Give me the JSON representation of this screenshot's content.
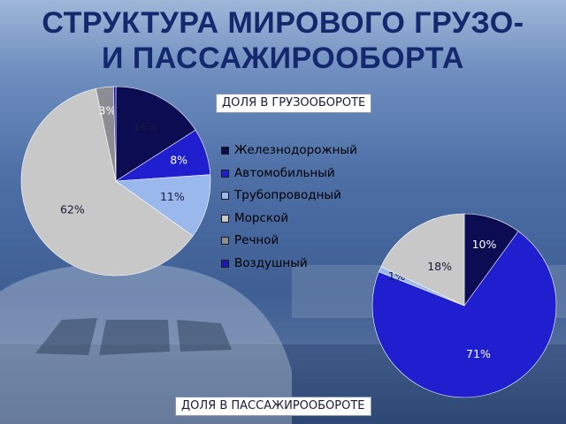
{
  "title": {
    "line1": "СТРУКТУРА МИРОВОГО ГРУЗО-",
    "line2": "И ПАССАЖИРООБОРТА"
  },
  "colors": {
    "railway": "#0c0c52",
    "road": "#1f1fd0",
    "pipeline": "#9ab8ec",
    "sea": "#c8c8c8",
    "river": "#8c8c94",
    "air": "#1a1ab4"
  },
  "legend": [
    {
      "key": "railway",
      "label": "Железнодорожный"
    },
    {
      "key": "road",
      "label": "Автомобильный"
    },
    {
      "key": "pipeline",
      "label": "Трубопроводный"
    },
    {
      "key": "sea",
      "label": "Морской"
    },
    {
      "key": "river",
      "label": "Речной"
    },
    {
      "key": "air",
      "label": "Воздушный"
    }
  ],
  "chart_data": [
    {
      "type": "pie",
      "title": "ДОЛЯ В ГРУЗООБОРОТЕ",
      "categories": [
        "Железнодорожный",
        "Автомобильный",
        "Трубопроводный",
        "Морской",
        "Речной",
        "Воздушный"
      ],
      "values": [
        16,
        8,
        11,
        62,
        3,
        0.4
      ],
      "labels": [
        "16%",
        "8%",
        "11%",
        "62%",
        "3%",
        ""
      ],
      "legend_position": "right"
    },
    {
      "type": "pie",
      "title": "ДОЛЯ В ПАССАЖИРООБОРОТЕ",
      "categories": [
        "Железнодорожный",
        "Автомобильный",
        "Трубопроводный",
        "Морской",
        "Речной",
        "Воздушный"
      ],
      "values": [
        10,
        71,
        1,
        18,
        0,
        0
      ],
      "labels": [
        "10%",
        "71%",
        "1%",
        "18%",
        "",
        ""
      ],
      "legend_position": "right"
    }
  ]
}
